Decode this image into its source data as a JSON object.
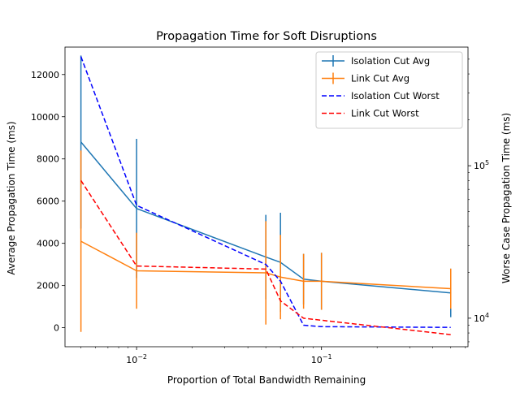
{
  "chart_data": {
    "type": "line",
    "title": "Propagation Time for Soft Disruptions",
    "xlabel": "Proportion of Total Bandwidth Remaining",
    "ylabel": "Average Propagation Time (ms)",
    "y2label": "Worse Case Propagation Time (ms)",
    "x_scale": "log",
    "y2_scale": "log",
    "xlim": [
      0.0041,
      0.62
    ],
    "ylim": [
      -900,
      13300
    ],
    "y2lim": [
      6500,
      600000
    ],
    "x_ticks": [
      {
        "value": 0.01,
        "base": "10",
        "exp": "−2"
      },
      {
        "value": 0.1,
        "base": "10",
        "exp": "−1"
      }
    ],
    "y_ticks": [
      0,
      2000,
      4000,
      6000,
      8000,
      10000,
      12000
    ],
    "y2_ticks": [
      {
        "value": 10000,
        "base": "10",
        "exp": "4"
      },
      {
        "value": 100000,
        "base": "10",
        "exp": "5"
      }
    ],
    "grid": false,
    "legend_position": "top-right",
    "series": [
      {
        "name": "Isolation Cut Avg",
        "axis": "left",
        "color": "#1f77b4",
        "style": "solid",
        "errorbars": true,
        "points": [
          {
            "x": 0.005,
            "y": 8800,
            "yerr": 4100
          },
          {
            "x": 0.01,
            "y": 5650,
            "yerr": 3300
          },
          {
            "x": 0.05,
            "y": 3350,
            "yerr": 2000
          },
          {
            "x": 0.06,
            "y": 3100,
            "yerr": 2350
          },
          {
            "x": 0.08,
            "y": 2300,
            "yerr": 1200
          },
          {
            "x": 0.1,
            "y": 2200,
            "yerr": 1350
          },
          {
            "x": 0.5,
            "y": 1650,
            "yerr": 1150
          }
        ]
      },
      {
        "name": "Link Cut Avg",
        "axis": "left",
        "color": "#ff7f0e",
        "style": "solid",
        "errorbars": true,
        "points": [
          {
            "x": 0.005,
            "y": 4100,
            "yerr": 4300
          },
          {
            "x": 0.01,
            "y": 2700,
            "yerr": 1800
          },
          {
            "x": 0.05,
            "y": 2600,
            "yerr": 2450
          },
          {
            "x": 0.06,
            "y": 2400,
            "yerr": 2000
          },
          {
            "x": 0.08,
            "y": 2200,
            "yerr": 1300
          },
          {
            "x": 0.1,
            "y": 2200,
            "yerr": 1350
          },
          {
            "x": 0.5,
            "y": 1850,
            "yerr": 950
          }
        ]
      },
      {
        "name": "Isolation Cut Worst",
        "axis": "right",
        "color": "#0000ff",
        "style": "dashed",
        "errorbars": false,
        "points": [
          {
            "x": 0.005,
            "y": 520000
          },
          {
            "x": 0.01,
            "y": 55000
          },
          {
            "x": 0.05,
            "y": 22500
          },
          {
            "x": 0.06,
            "y": 17500
          },
          {
            "x": 0.08,
            "y": 9000
          },
          {
            "x": 0.1,
            "y": 8800
          },
          {
            "x": 0.5,
            "y": 8700
          }
        ]
      },
      {
        "name": "Link Cut Worst",
        "axis": "right",
        "color": "#ff0000",
        "style": "dashed",
        "errorbars": false,
        "points": [
          {
            "x": 0.005,
            "y": 80000
          },
          {
            "x": 0.01,
            "y": 22000
          },
          {
            "x": 0.05,
            "y": 21000
          },
          {
            "x": 0.06,
            "y": 13000
          },
          {
            "x": 0.08,
            "y": 10000
          },
          {
            "x": 0.1,
            "y": 9700
          },
          {
            "x": 0.5,
            "y": 7800
          }
        ]
      }
    ]
  }
}
